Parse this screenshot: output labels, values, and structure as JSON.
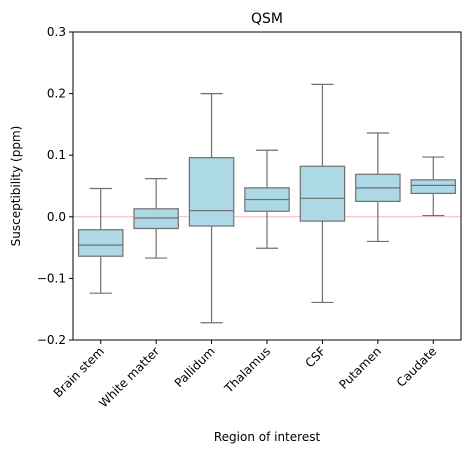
{
  "chart_data": {
    "type": "box",
    "title": "QSM",
    "xlabel": "Region of interest",
    "ylabel": "Susceptibility (ppm)",
    "ylim": [
      -0.2,
      0.3
    ],
    "yticks": [
      -0.2,
      -0.1,
      0.0,
      0.1,
      0.2,
      0.3
    ],
    "ytick_labels": [
      "−0.2",
      "−0.1",
      "0.0",
      "0.1",
      "0.2",
      "0.3"
    ],
    "reference_line": 0.0,
    "grid": false,
    "categories": [
      "Brain stem",
      "White matter",
      "Pallidum",
      "Thalamus",
      "CSF",
      "Putamen",
      "Caudate"
    ],
    "boxes": [
      {
        "name": "Brain stem",
        "whisker_low": -0.124,
        "q1": -0.064,
        "median": -0.046,
        "q3": -0.021,
        "whisker_high": 0.046
      },
      {
        "name": "White matter",
        "whisker_low": -0.067,
        "q1": -0.019,
        "median": -0.002,
        "q3": 0.013,
        "whisker_high": 0.062
      },
      {
        "name": "Pallidum",
        "whisker_low": -0.172,
        "q1": -0.015,
        "median": 0.01,
        "q3": 0.096,
        "whisker_high": 0.2
      },
      {
        "name": "Thalamus",
        "whisker_low": -0.051,
        "q1": 0.009,
        "median": 0.028,
        "q3": 0.047,
        "whisker_high": 0.108
      },
      {
        "name": "CSF",
        "whisker_low": -0.139,
        "q1": -0.007,
        "median": 0.03,
        "q3": 0.082,
        "whisker_high": 0.215
      },
      {
        "name": "Putamen",
        "whisker_low": -0.04,
        "q1": 0.025,
        "median": 0.047,
        "q3": 0.069,
        "whisker_high": 0.136
      },
      {
        "name": "Caudate",
        "whisker_low": 0.002,
        "q1": 0.038,
        "median": 0.051,
        "q3": 0.06,
        "whisker_high": 0.097
      }
    ],
    "colors": {
      "box_fill": "#add8e6",
      "box_edge": "#707070",
      "reference_line": "#f4b8c4",
      "axis": "#000000"
    }
  }
}
